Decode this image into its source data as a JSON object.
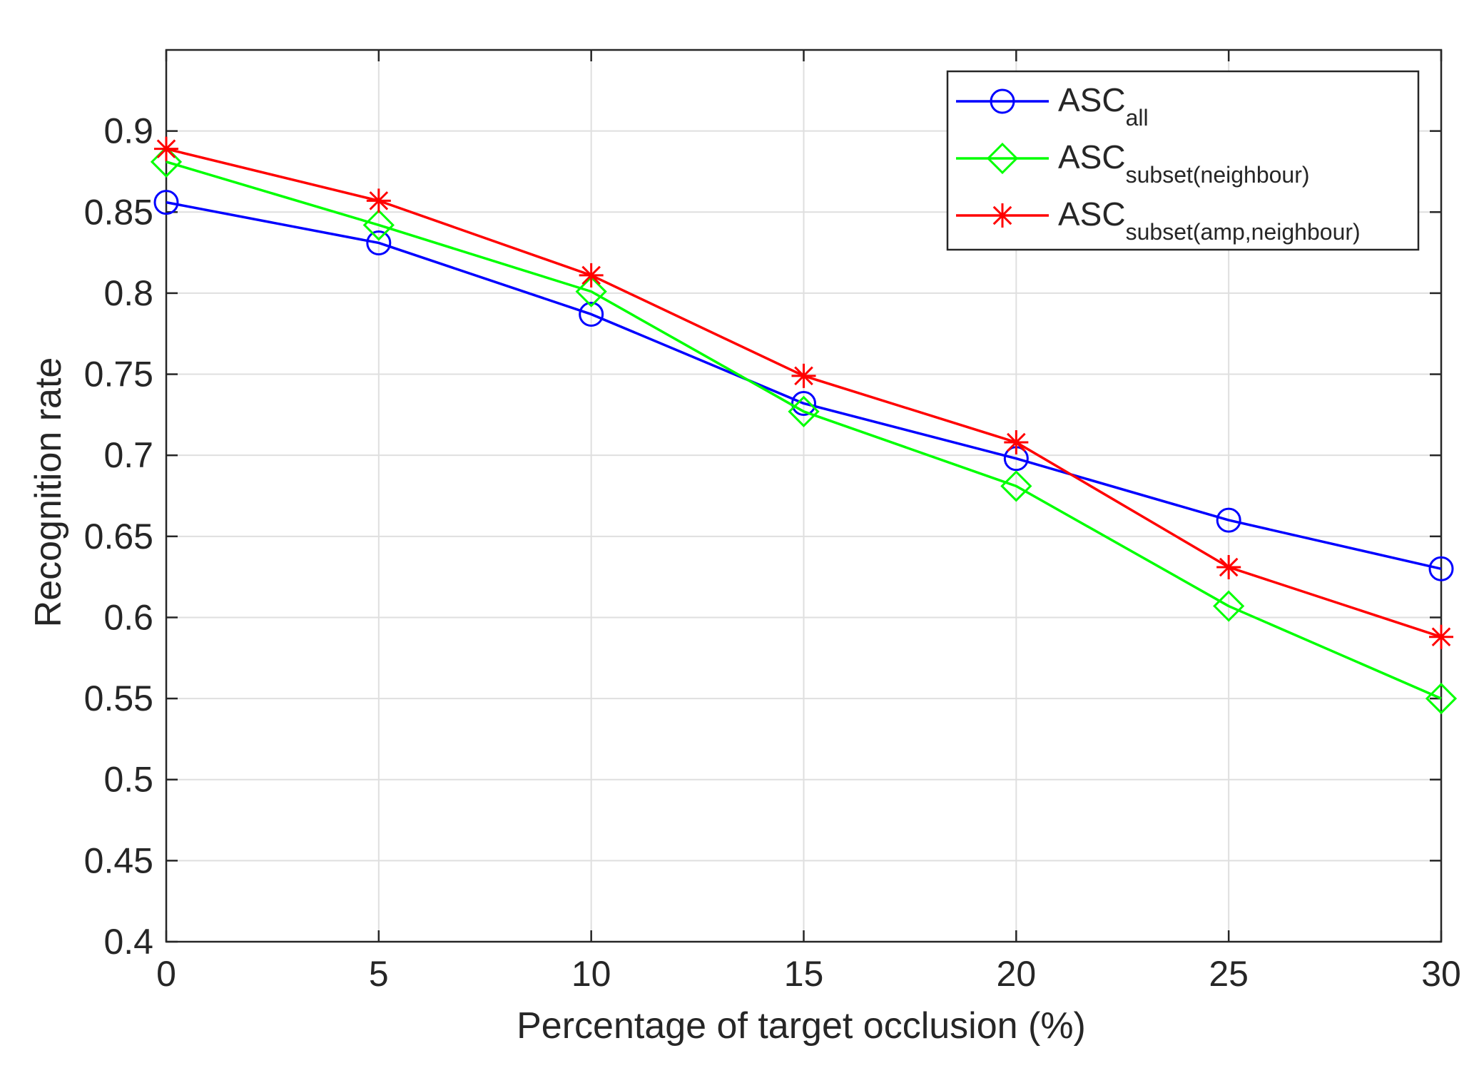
{
  "chart_data": {
    "type": "line",
    "title": "",
    "xlabel": "Percentage of target occlusion (%)",
    "ylabel": "Recognition rate",
    "x": [
      0,
      5,
      10,
      15,
      20,
      25,
      30
    ],
    "xlim": [
      0,
      30
    ],
    "ylim": [
      0.4,
      0.95
    ],
    "x_ticks": [
      0,
      5,
      10,
      15,
      20,
      25,
      30
    ],
    "x_tick_labels": [
      "0",
      "5",
      "10",
      "15",
      "20",
      "25",
      "30"
    ],
    "y_ticks": [
      0.4,
      0.45,
      0.5,
      0.55,
      0.6,
      0.65,
      0.7,
      0.75,
      0.8,
      0.85,
      0.9
    ],
    "y_tick_labels": [
      "0.4",
      "0.45",
      "0.5",
      "0.55",
      "0.6",
      "0.65",
      "0.7",
      "0.75",
      "0.8",
      "0.85",
      "0.9"
    ],
    "grid": true,
    "legend_position": "top-right",
    "series": [
      {
        "name": "ASC",
        "subscript": "all",
        "color": "#0000ff",
        "marker": "circle",
        "values": [
          0.856,
          0.831,
          0.787,
          0.732,
          0.698,
          0.66,
          0.63
        ]
      },
      {
        "name": "ASC",
        "subscript": "subset(neighbour)",
        "color": "#00ff00",
        "marker": "diamond",
        "values": [
          0.881,
          0.842,
          0.801,
          0.727,
          0.681,
          0.607,
          0.55
        ]
      },
      {
        "name": "ASC",
        "subscript": "subset(amp,neighbour)",
        "color": "#ff0000",
        "marker": "star",
        "values": [
          0.889,
          0.857,
          0.811,
          0.749,
          0.708,
          0.631,
          0.588
        ]
      }
    ]
  }
}
